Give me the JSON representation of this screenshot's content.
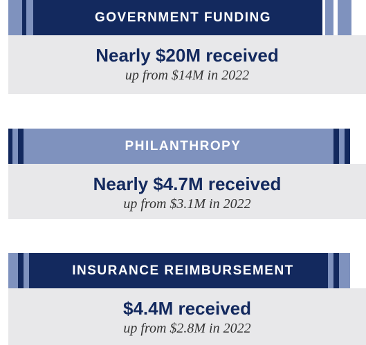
{
  "sections": [
    {
      "title": "GOVERNMENT FUNDING",
      "headline": "Nearly $20M received",
      "detail": "up from $14M in 2022"
    },
    {
      "title": "PHILANTHROPY",
      "headline": "Nearly $4.7M received",
      "detail": "up from $3.1M in 2022"
    },
    {
      "title": "INSURANCE REIMBURSEMENT",
      "headline": "$4.4M received",
      "detail": "up from $2.8M in 2022"
    }
  ]
}
